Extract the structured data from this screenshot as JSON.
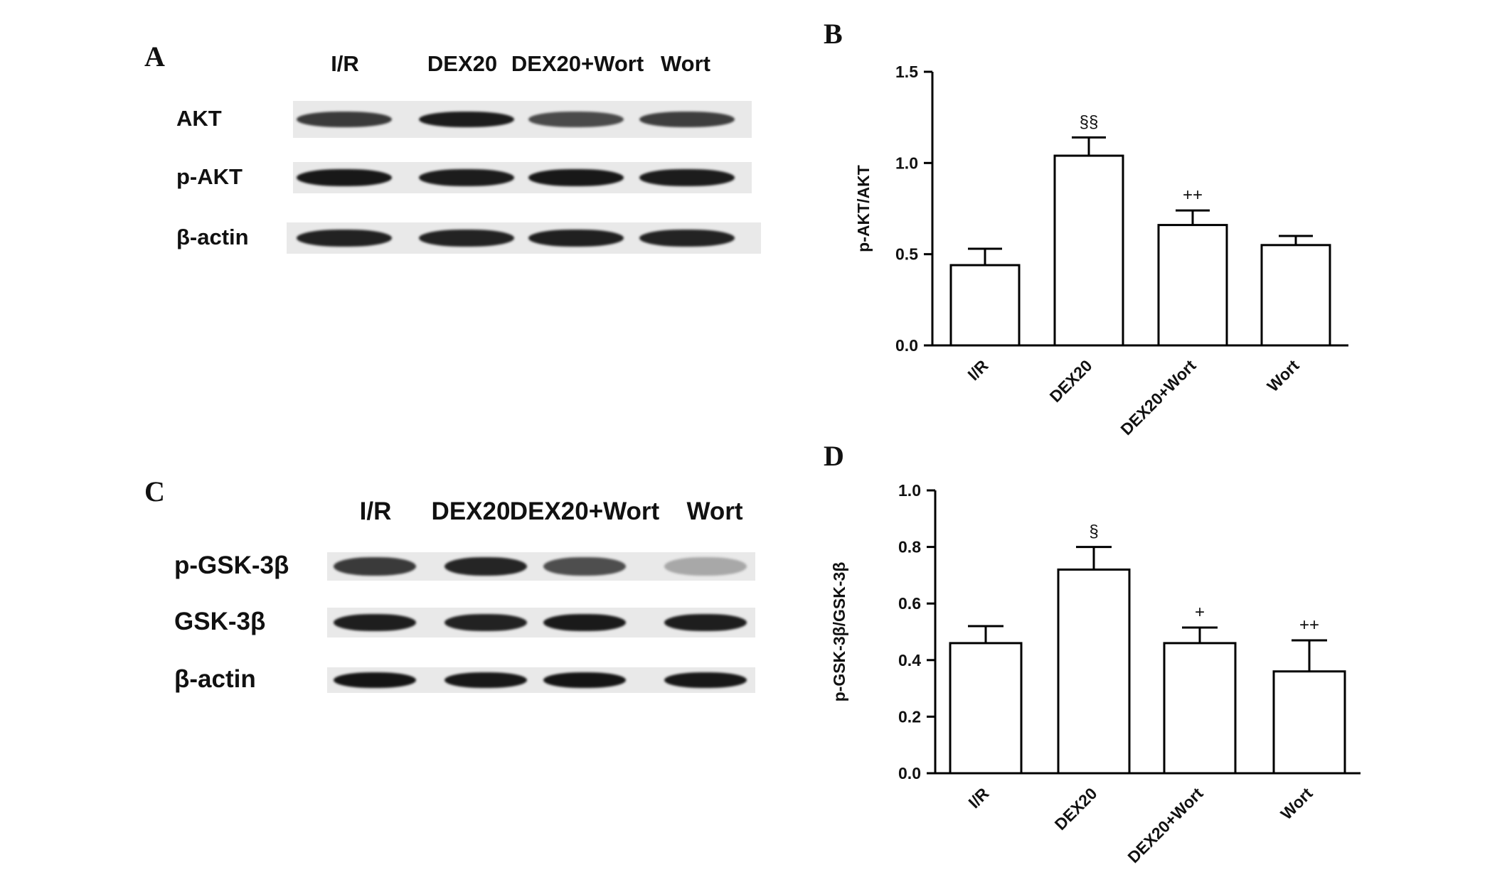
{
  "panels": {
    "a": {
      "letter": "A",
      "lanes": [
        "I/R",
        "DEX20",
        "DEX20+Wort",
        "Wort"
      ],
      "rows": [
        {
          "label": "AKT",
          "band_colors": [
            "#3a3a3a",
            "#1c1c1c",
            "#4a4a4a",
            "#3e3e3e"
          ]
        },
        {
          "label": "p-AKT",
          "band_colors": [
            "#181818",
            "#1c1c1c",
            "#181818",
            "#1c1c1c"
          ]
        },
        {
          "label": "β-actin",
          "band_colors": [
            "#222222",
            "#232323",
            "#202020",
            "#232323"
          ]
        }
      ]
    },
    "b": {
      "letter": "B"
    },
    "c": {
      "letter": "C",
      "lanes": [
        "I/R",
        "DEX20",
        "DEX20+Wort",
        "Wort"
      ],
      "rows": [
        {
          "label": "p-GSK-3β",
          "band_colors": [
            "#3a3a3a",
            "#252525",
            "#4e4e4e",
            "#a8a8a8"
          ]
        },
        {
          "label": "GSK-3β",
          "band_colors": [
            "#1e1e1e",
            "#222222",
            "#1a1a1a",
            "#1e1e1e"
          ]
        },
        {
          "label": "β-actin",
          "band_colors": [
            "#151515",
            "#181818",
            "#151515",
            "#181818"
          ]
        }
      ]
    },
    "d": {
      "letter": "D"
    }
  },
  "chart_data": [
    {
      "type": "bar",
      "panel": "B",
      "categories": [
        "I/R",
        "DEX20",
        "DEX20+Wort",
        "Wort"
      ],
      "values": [
        0.44,
        1.04,
        0.66,
        0.55
      ],
      "errors": [
        0.09,
        0.1,
        0.08,
        0.05
      ],
      "annotations": [
        "",
        "§§",
        "++",
        ""
      ],
      "ylabel": "p-AKT/AKT",
      "xlabel": "",
      "ylim": [
        0,
        1.5
      ],
      "yticks": [
        "0.0",
        "0.5",
        "1.0",
        "1.5"
      ],
      "bar_color": "#ffffff",
      "edge_color": "#000000"
    },
    {
      "type": "bar",
      "panel": "D",
      "categories": [
        "I/R",
        "DEX20",
        "DEX20+Wort",
        "Wort"
      ],
      "values": [
        0.46,
        0.72,
        0.46,
        0.36
      ],
      "errors": [
        0.06,
        0.08,
        0.055,
        0.11
      ],
      "annotations": [
        "",
        "§",
        "+",
        "++"
      ],
      "ylabel": "p-GSK-3β/GSK-3β",
      "xlabel": "",
      "ylim": [
        0,
        1.0
      ],
      "yticks": [
        "0.0",
        "0.2",
        "0.4",
        "0.6",
        "0.8",
        "1.0"
      ],
      "bar_color": "#ffffff",
      "edge_color": "#000000"
    }
  ]
}
